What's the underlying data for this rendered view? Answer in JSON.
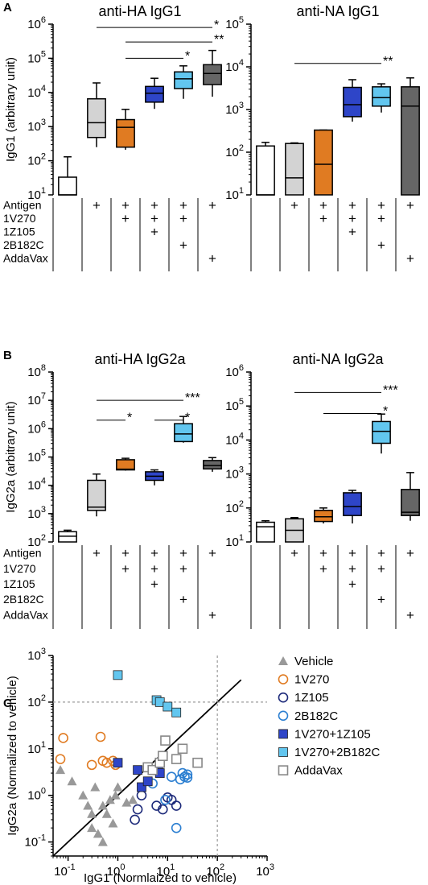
{
  "chart_data": [
    {
      "panel": "A",
      "type": "box",
      "title": "anti-HA IgG1",
      "ylabel": "IgG1 (arbitrary unit)",
      "yscale": "log",
      "ylim": [
        10,
        1000000
      ],
      "ytick_labels": [
        {
          "b": "10",
          "e": "1"
        },
        {
          "b": "10",
          "e": "2"
        },
        {
          "b": "10",
          "e": "3"
        },
        {
          "b": "10",
          "e": "4"
        },
        {
          "b": "10",
          "e": "5"
        },
        {
          "b": "10",
          "e": "6"
        }
      ],
      "groups": [
        {
          "color": "#ffffff",
          "min": 10,
          "q1": 10,
          "median": 10,
          "q3": 33,
          "max": 130
        },
        {
          "color": "#d3d3d3",
          "min": 250,
          "q1": 480,
          "median": 1300,
          "q3": 6500,
          "max": 19000
        },
        {
          "color": "#e07b22",
          "min": 210,
          "q1": 250,
          "median": 950,
          "q3": 1600,
          "max": 3200
        },
        {
          "color": "#2e45c8",
          "min": 3300,
          "q1": 5200,
          "median": 9500,
          "q3": 15000,
          "max": 26000
        },
        {
          "color": "#62c6ef",
          "min": 6500,
          "q1": 13000,
          "median": 25000,
          "q3": 40000,
          "max": 60000
        },
        {
          "color": "#666666",
          "min": 7500,
          "q1": 17000,
          "median": 36000,
          "q3": 65000,
          "max": 170000
        }
      ],
      "significance": [
        {
          "from": 1,
          "to": 5,
          "y": 800000,
          "label": "*"
        },
        {
          "from": 2,
          "to": 5,
          "y": 300000,
          "label": "**"
        },
        {
          "from": 2,
          "to": 4,
          "y": 100000,
          "label": "*"
        }
      ]
    },
    {
      "panel": "A",
      "type": "box",
      "title": "anti-NA IgG1",
      "ylabel": "",
      "yscale": "log",
      "ylim": [
        10,
        100000
      ],
      "ytick_labels": [
        {
          "b": "10",
          "e": "1"
        },
        {
          "b": "10",
          "e": "2"
        },
        {
          "b": "10",
          "e": "3"
        },
        {
          "b": "10",
          "e": "4"
        },
        {
          "b": "10",
          "e": "5"
        }
      ],
      "groups": [
        {
          "color": "#ffffff",
          "min": 10,
          "q1": 10,
          "median": 10,
          "q3": 140,
          "max": 170
        },
        {
          "color": "#d3d3d3",
          "min": 10,
          "q1": 10,
          "median": 25,
          "q3": 160,
          "max": 165
        },
        {
          "color": "#e07b22",
          "min": 10,
          "q1": 10,
          "median": 52,
          "q3": 330,
          "max": 330
        },
        {
          "color": "#2e45c8",
          "min": 520,
          "q1": 680,
          "median": 1300,
          "q3": 3300,
          "max": 5000
        },
        {
          "color": "#62c6ef",
          "min": 850,
          "q1": 1200,
          "median": 1900,
          "q3": 3400,
          "max": 4000
        },
        {
          "color": "#666666",
          "min": 10,
          "q1": 10,
          "median": 1200,
          "q3": 3400,
          "max": 5500
        }
      ],
      "significance": [
        {
          "from": 1,
          "to": 4,
          "y": 12000,
          "label": "**"
        }
      ]
    },
    {
      "panel": "B",
      "type": "box",
      "title": "anti-HA IgG2a",
      "ylabel": "IgG2a (arbitrary unit)",
      "yscale": "log",
      "ylim": [
        100,
        100000000
      ],
      "ytick_labels": [
        {
          "b": "10",
          "e": "2"
        },
        {
          "b": "10",
          "e": "3"
        },
        {
          "b": "10",
          "e": "4"
        },
        {
          "b": "10",
          "e": "5"
        },
        {
          "b": "10",
          "e": "6"
        },
        {
          "b": "10",
          "e": "7"
        },
        {
          "b": "10",
          "e": "8"
        }
      ],
      "groups": [
        {
          "color": "#ffffff",
          "min": 100,
          "q1": 100,
          "median": 160,
          "q3": 230,
          "max": 260
        },
        {
          "color": "#d3d3d3",
          "min": 800,
          "q1": 1300,
          "median": 1700,
          "q3": 15000,
          "max": 25000
        },
        {
          "color": "#e07b22",
          "min": 33000,
          "q1": 35000,
          "median": 37000,
          "q3": 80000,
          "max": 90000
        },
        {
          "color": "#2e45c8",
          "min": 10000,
          "q1": 15000,
          "median": 21000,
          "q3": 30000,
          "max": 35000
        },
        {
          "color": "#62c6ef",
          "min": 320000,
          "q1": 350000,
          "median": 650000,
          "q3": 1500000,
          "max": 2700000
        },
        {
          "color": "#666666",
          "min": 30000,
          "q1": 38000,
          "median": 50000,
          "q3": 75000,
          "max": 95000
        }
      ],
      "significance": [
        {
          "from": 1,
          "to": 4,
          "y": 10000000,
          "label": "***"
        },
        {
          "from": 1,
          "to": 2,
          "y": 2000000,
          "label": "*"
        },
        {
          "from": 3,
          "to": 4,
          "y": 2000000,
          "label": "*"
        }
      ]
    },
    {
      "panel": "B",
      "type": "box",
      "title": "anti-NA IgG2a",
      "ylabel": "",
      "yscale": "log",
      "ylim": [
        10,
        1000000
      ],
      "ytick_labels": [
        {
          "b": "10",
          "e": "1"
        },
        {
          "b": "10",
          "e": "2"
        },
        {
          "b": "10",
          "e": "3"
        },
        {
          "b": "10",
          "e": "4"
        },
        {
          "b": "10",
          "e": "5"
        },
        {
          "b": "10",
          "e": "6"
        }
      ],
      "groups": [
        {
          "color": "#ffffff",
          "min": 10,
          "q1": 10,
          "median": 28,
          "q3": 38,
          "max": 42
        },
        {
          "color": "#d3d3d3",
          "min": 10,
          "q1": 10,
          "median": 22,
          "q3": 48,
          "max": 52
        },
        {
          "color": "#e07b22",
          "min": 35,
          "q1": 40,
          "median": 55,
          "q3": 85,
          "max": 100
        },
        {
          "color": "#2e45c8",
          "min": 35,
          "q1": 60,
          "median": 110,
          "q3": 280,
          "max": 330
        },
        {
          "color": "#62c6ef",
          "min": 4000,
          "q1": 8000,
          "median": 18000,
          "q3": 35000,
          "max": 58000
        },
        {
          "color": "#666666",
          "min": 42,
          "q1": 60,
          "median": 75,
          "q3": 350,
          "max": 1100
        }
      ],
      "significance": [
        {
          "from": 1,
          "to": 4,
          "y": 250000,
          "label": "***"
        },
        {
          "from": 2,
          "to": 4,
          "y": 60000,
          "label": "*"
        }
      ]
    },
    {
      "panel": "C",
      "type": "scatter",
      "xlabel": "IgG1 (Normlaized  to vehicle)",
      "ylabel": "IgG2a (Normalized to vehicle)",
      "xscale": "log",
      "yscale": "log",
      "xlim": [
        0.05,
        1000
      ],
      "ylim": [
        0.05,
        1000
      ],
      "xtick_labels": [
        {
          "b": "10",
          "e": "-1"
        },
        {
          "b": "10",
          "e": "0"
        },
        {
          "b": "10",
          "e": "1"
        },
        {
          "b": "10",
          "e": "2"
        },
        {
          "b": "10",
          "e": "3"
        }
      ],
      "ytick_labels": [
        {
          "b": "10",
          "e": "-1"
        },
        {
          "b": "10",
          "e": "0"
        },
        {
          "b": "10",
          "e": "1"
        },
        {
          "b": "10",
          "e": "2"
        },
        {
          "b": "10",
          "e": "3"
        }
      ],
      "reference_lines": {
        "vertical_x": 100,
        "horizontal_y": 100,
        "identity": true
      },
      "series": [
        {
          "name": "Vehicle",
          "marker": "triangle",
          "color": "#999999",
          "x": [
            0.07,
            0.2,
            0.25,
            0.3,
            0.35,
            0.5,
            0.7,
            0.9,
            1.0,
            1.5,
            2.0,
            0.3,
            0.4,
            0.5,
            0.6,
            0.8,
            0.12
          ],
          "y": [
            3.5,
            1.0,
            0.6,
            0.4,
            1.5,
            0.6,
            0.8,
            1.0,
            1.5,
            0.7,
            0.8,
            0.2,
            0.15,
            0.1,
            0.4,
            0.25,
            2.0
          ]
        },
        {
          "name": "1V270",
          "marker": "circle-open",
          "color": "#e07b22",
          "x": [
            0.07,
            0.08,
            0.3,
            0.45,
            0.5,
            0.6,
            0.8,
            0.9
          ],
          "y": [
            6,
            17,
            4.5,
            18,
            5.5,
            5,
            5.5,
            4.5
          ]
        },
        {
          "name": "1Z105",
          "marker": "circle-open",
          "color": "#1d2a7a",
          "x": [
            2.2,
            2.5,
            3,
            6,
            8,
            10,
            12,
            15
          ],
          "y": [
            0.3,
            0.5,
            1.0,
            0.6,
            0.5,
            0.9,
            0.8,
            0.6
          ]
        },
        {
          "name": "2B182C",
          "marker": "circle-open",
          "color": "#2c7fd1",
          "x": [
            5,
            9,
            12,
            15,
            18,
            20,
            22,
            25,
            25
          ],
          "y": [
            1.8,
            0.8,
            2.5,
            0.2,
            2.2,
            3.0,
            2.5,
            2.8,
            2.4
          ]
        },
        {
          "name": "1V270+1Z105",
          "marker": "square",
          "color": "#2e45c8",
          "x": [
            1.0,
            2.5,
            3.0,
            4.0,
            6.5,
            7.0
          ],
          "y": [
            5.0,
            3.5,
            1.5,
            2.0,
            3.5,
            3.0
          ]
        },
        {
          "name": "1V270+2B182C",
          "marker": "square",
          "color": "#62c6ef",
          "x": [
            1.0,
            6.0,
            7.0,
            10,
            15
          ],
          "y": [
            380,
            110,
            100,
            80,
            60
          ]
        },
        {
          "name": "AddaVax",
          "marker": "square-open",
          "color": "#888888",
          "x": [
            4,
            5,
            7,
            8,
            9,
            15,
            20,
            40
          ],
          "y": [
            4,
            3.5,
            5,
            7,
            15,
            6,
            10,
            5
          ]
        }
      ]
    }
  ],
  "conditions": {
    "rows": [
      "Antigen",
      "1V270",
      "1Z105",
      "2B182C",
      "AddaVax"
    ],
    "matrix": [
      [
        false,
        true,
        true,
        true,
        true,
        true
      ],
      [
        false,
        false,
        true,
        true,
        true,
        false
      ],
      [
        false,
        false,
        false,
        true,
        false,
        false
      ],
      [
        false,
        false,
        false,
        false,
        true,
        false
      ],
      [
        false,
        false,
        false,
        false,
        false,
        true
      ]
    ],
    "mark": "+"
  },
  "panel_letters": [
    "A",
    "B",
    "C"
  ]
}
